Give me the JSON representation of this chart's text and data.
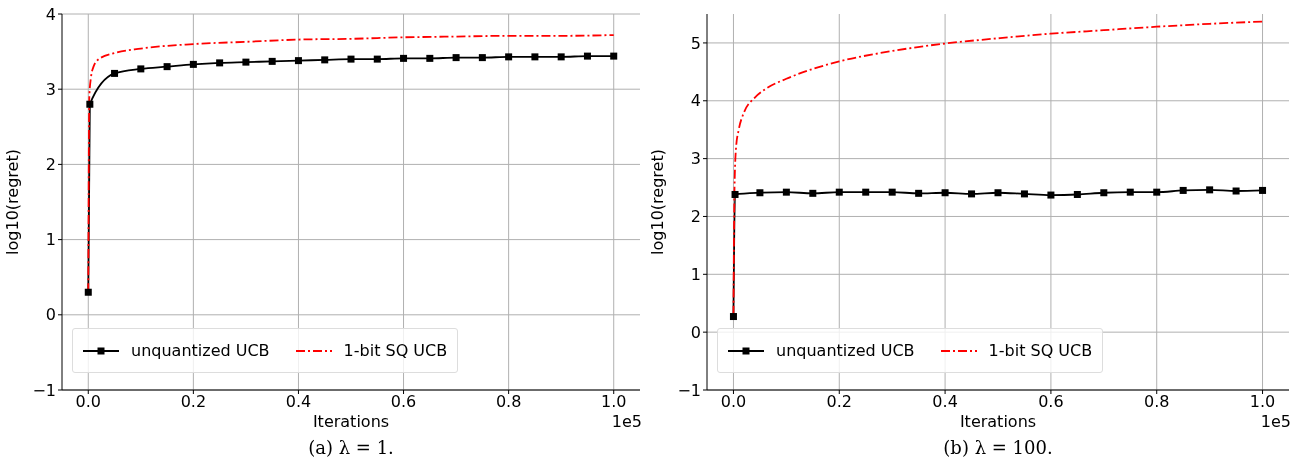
{
  "chart_data": [
    {
      "type": "line",
      "title": "(a) λ = 1.",
      "xlabel": "Iterations",
      "ylabel": "log10(regret)",
      "annotations": [
        "1e5"
      ],
      "xlim": [
        -0.05,
        1.05
      ],
      "xticks": [
        {
          "value": 0,
          "label": "0.0"
        },
        {
          "value": 0.2,
          "label": "0.2"
        },
        {
          "value": 0.4,
          "label": "0.4"
        },
        {
          "value": 0.6,
          "label": "0.6"
        },
        {
          "value": 0.8,
          "label": "0.8"
        },
        {
          "value": 1,
          "label": "1.0"
        }
      ],
      "ylim": [
        -1,
        4
      ],
      "yticks": [
        {
          "value": -1,
          "label": "−1"
        },
        0,
        1,
        2,
        3,
        4
      ],
      "grid": true,
      "legend": "bottom left",
      "series": [
        {
          "name": "unquantized UCB",
          "color": "#000000",
          "marker": "square",
          "line_style": "solid",
          "x": [
            0,
            0.003,
            0.05,
            0.1,
            0.15,
            0.2,
            0.25,
            0.3,
            0.35,
            0.4,
            0.45,
            0.5,
            0.55,
            0.6,
            0.65,
            0.7,
            0.75,
            0.8,
            0.85,
            0.9,
            0.95,
            1.0
          ],
          "values": [
            0.3,
            2.8,
            3.21,
            3.27,
            3.3,
            3.33,
            3.35,
            3.36,
            3.37,
            3.38,
            3.39,
            3.4,
            3.4,
            3.41,
            3.41,
            3.42,
            3.42,
            3.43,
            3.43,
            3.43,
            3.44,
            3.44
          ]
        },
        {
          "name": "1-bit SQ UCB",
          "color": "#ff0000",
          "marker": "none",
          "line_style": "dashed",
          "x": [
            0,
            0.002,
            0.005,
            0.01,
            0.02,
            0.05,
            0.1,
            0.2,
            0.3,
            0.4,
            0.5,
            0.6,
            0.7,
            0.8,
            0.9,
            1.0
          ],
          "values": [
            0.3,
            2.9,
            3.15,
            3.3,
            3.4,
            3.48,
            3.54,
            3.6,
            3.63,
            3.66,
            3.67,
            3.69,
            3.7,
            3.71,
            3.71,
            3.72
          ]
        }
      ]
    },
    {
      "type": "line",
      "title": "(b) λ = 100.",
      "xlabel": "Iterations",
      "ylabel": "log10(regret)",
      "annotations": [
        "1e5"
      ],
      "xlim": [
        -0.05,
        1.05
      ],
      "xticks": [
        {
          "value": 0,
          "label": "0.0"
        },
        {
          "value": 0.2,
          "label": "0.2"
        },
        {
          "value": 0.4,
          "label": "0.4"
        },
        {
          "value": 0.6,
          "label": "0.6"
        },
        {
          "value": 0.8,
          "label": "0.8"
        },
        {
          "value": 1,
          "label": "1.0"
        }
      ],
      "ylim": [
        -1,
        5.5
      ],
      "yticks": [
        {
          "value": -1,
          "label": "−1"
        },
        0,
        1,
        2,
        3,
        4,
        5
      ],
      "grid": true,
      "legend": "bottom left",
      "series": [
        {
          "name": "unquantized UCB",
          "color": "#000000",
          "marker": "square",
          "line_style": "solid",
          "x": [
            0,
            0.003,
            0.05,
            0.1,
            0.15,
            0.2,
            0.25,
            0.3,
            0.35,
            0.4,
            0.45,
            0.5,
            0.55,
            0.6,
            0.65,
            0.7,
            0.75,
            0.8,
            0.85,
            0.9,
            0.95,
            1.0
          ],
          "values": [
            0.27,
            2.38,
            2.41,
            2.42,
            2.4,
            2.42,
            2.42,
            2.42,
            2.4,
            2.41,
            2.39,
            2.41,
            2.39,
            2.37,
            2.38,
            2.41,
            2.42,
            2.42,
            2.45,
            2.46,
            2.44,
            2.45
          ]
        },
        {
          "name": "1-bit SQ UCB",
          "color": "#ff0000",
          "marker": "none",
          "line_style": "dashed",
          "x": [
            0,
            0.002,
            0.005,
            0.01,
            0.02,
            0.04,
            0.06,
            0.1,
            0.15,
            0.2,
            0.3,
            0.4,
            0.5,
            0.6,
            0.7,
            0.8,
            0.9,
            1.0
          ],
          "values": [
            0.3,
            2.5,
            3.2,
            3.5,
            3.8,
            4.05,
            4.2,
            4.38,
            4.55,
            4.68,
            4.86,
            4.99,
            5.08,
            5.16,
            5.22,
            5.28,
            5.33,
            5.37
          ]
        }
      ]
    }
  ]
}
